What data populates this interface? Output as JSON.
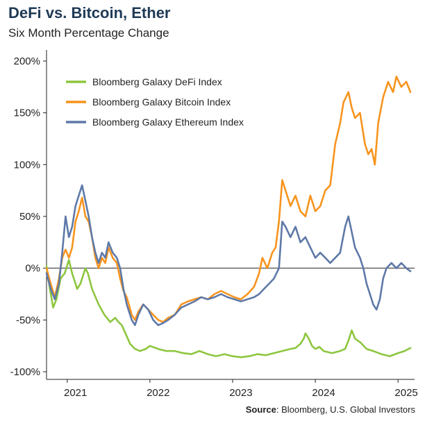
{
  "title": "DeFi vs. Bitcoin, Ether",
  "subtitle": "Six Month Percentage Change",
  "source": {
    "label": "Source",
    "text": ": Bloomberg, U.S. Global Investors"
  },
  "chart_data": {
    "type": "line",
    "x_unit": "year",
    "x_ticks": [
      "2021",
      "2022",
      "2023",
      "2024",
      "2025"
    ],
    "y_ticks": [
      "200%",
      "150%",
      "100%",
      "50%",
      "0%",
      "-50%",
      "-100%"
    ],
    "ylim": [
      -100,
      200
    ],
    "xlim": [
      2020.75,
      2025.2
    ],
    "zero_line": true,
    "legend_position": "top-left",
    "series": [
      {
        "name": "Bloomberg Galaxy DeFi Index",
        "color": "#8dc63f",
        "points": [
          [
            2020.75,
            2
          ],
          [
            2020.79,
            -20
          ],
          [
            2020.83,
            -38
          ],
          [
            2020.87,
            -30
          ],
          [
            2020.92,
            -10
          ],
          [
            2020.97,
            -5
          ],
          [
            2021.02,
            8
          ],
          [
            2021.06,
            -5
          ],
          [
            2021.12,
            -20
          ],
          [
            2021.16,
            -15
          ],
          [
            2021.22,
            0
          ],
          [
            2021.25,
            -5
          ],
          [
            2021.3,
            -20
          ],
          [
            2021.38,
            -35
          ],
          [
            2021.45,
            -45
          ],
          [
            2021.52,
            -52
          ],
          [
            2021.58,
            -48
          ],
          [
            2021.62,
            -52
          ],
          [
            2021.66,
            -55
          ],
          [
            2021.7,
            -62
          ],
          [
            2021.76,
            -73
          ],
          [
            2021.82,
            -78
          ],
          [
            2021.88,
            -80
          ],
          [
            2021.95,
            -78
          ],
          [
            2022.0,
            -75
          ],
          [
            2022.1,
            -78
          ],
          [
            2022.2,
            -80
          ],
          [
            2022.3,
            -80
          ],
          [
            2022.4,
            -82
          ],
          [
            2022.5,
            -83
          ],
          [
            2022.6,
            -80
          ],
          [
            2022.7,
            -83
          ],
          [
            2022.8,
            -85
          ],
          [
            2022.9,
            -83
          ],
          [
            2023.0,
            -85
          ],
          [
            2023.1,
            -86
          ],
          [
            2023.2,
            -85
          ],
          [
            2023.3,
            -83
          ],
          [
            2023.4,
            -84
          ],
          [
            2023.5,
            -82
          ],
          [
            2023.6,
            -80
          ],
          [
            2023.7,
            -78
          ],
          [
            2023.76,
            -77
          ],
          [
            2023.82,
            -73
          ],
          [
            2023.86,
            -68
          ],
          [
            2023.88,
            -63
          ],
          [
            2023.92,
            -68
          ],
          [
            2023.96,
            -75
          ],
          [
            2024.0,
            -78
          ],
          [
            2024.05,
            -76
          ],
          [
            2024.1,
            -80
          ],
          [
            2024.2,
            -82
          ],
          [
            2024.3,
            -80
          ],
          [
            2024.36,
            -78
          ],
          [
            2024.4,
            -70
          ],
          [
            2024.44,
            -60
          ],
          [
            2024.48,
            -68
          ],
          [
            2024.55,
            -72
          ],
          [
            2024.62,
            -78
          ],
          [
            2024.7,
            -80
          ],
          [
            2024.8,
            -83
          ],
          [
            2024.9,
            -85
          ],
          [
            2025.0,
            -82
          ],
          [
            2025.08,
            -80
          ],
          [
            2025.15,
            -77
          ]
        ]
      },
      {
        "name": "Bloomberg Galaxy Bitcoin Index",
        "color": "#f7941d",
        "points": [
          [
            2020.75,
            0
          ],
          [
            2020.8,
            -15
          ],
          [
            2020.85,
            -28
          ],
          [
            2020.9,
            -10
          ],
          [
            2020.94,
            10
          ],
          [
            2020.98,
            18
          ],
          [
            2021.02,
            10
          ],
          [
            2021.06,
            20
          ],
          [
            2021.1,
            45
          ],
          [
            2021.14,
            55
          ],
          [
            2021.18,
            68
          ],
          [
            2021.22,
            50
          ],
          [
            2021.26,
            45
          ],
          [
            2021.3,
            30
          ],
          [
            2021.34,
            10
          ],
          [
            2021.38,
            0
          ],
          [
            2021.42,
            10
          ],
          [
            2021.46,
            5
          ],
          [
            2021.5,
            20
          ],
          [
            2021.55,
            10
          ],
          [
            2021.6,
            5
          ],
          [
            2021.64,
            -10
          ],
          [
            2021.68,
            -22
          ],
          [
            2021.72,
            -28
          ],
          [
            2021.78,
            -45
          ],
          [
            2021.82,
            -50
          ],
          [
            2021.86,
            -42
          ],
          [
            2021.92,
            -35
          ],
          [
            2021.98,
            -40
          ],
          [
            2022.04,
            -45
          ],
          [
            2022.1,
            -50
          ],
          [
            2022.16,
            -52
          ],
          [
            2022.22,
            -48
          ],
          [
            2022.3,
            -45
          ],
          [
            2022.38,
            -35
          ],
          [
            2022.46,
            -32
          ],
          [
            2022.54,
            -30
          ],
          [
            2022.62,
            -28
          ],
          [
            2022.7,
            -30
          ],
          [
            2022.78,
            -25
          ],
          [
            2022.86,
            -22
          ],
          [
            2022.94,
            -25
          ],
          [
            2023.02,
            -28
          ],
          [
            2023.1,
            -30
          ],
          [
            2023.18,
            -25
          ],
          [
            2023.26,
            -18
          ],
          [
            2023.32,
            -5
          ],
          [
            2023.36,
            10
          ],
          [
            2023.42,
            0
          ],
          [
            2023.48,
            15
          ],
          [
            2023.52,
            20
          ],
          [
            2023.56,
            45
          ],
          [
            2023.6,
            85
          ],
          [
            2023.64,
            75
          ],
          [
            2023.7,
            60
          ],
          [
            2023.76,
            70
          ],
          [
            2023.82,
            55
          ],
          [
            2023.88,
            50
          ],
          [
            2023.94,
            70
          ],
          [
            2024.0,
            55
          ],
          [
            2024.06,
            60
          ],
          [
            2024.12,
            75
          ],
          [
            2024.18,
            80
          ],
          [
            2024.24,
            120
          ],
          [
            2024.3,
            140
          ],
          [
            2024.34,
            160
          ],
          [
            2024.4,
            170
          ],
          [
            2024.44,
            155
          ],
          [
            2024.48,
            145
          ],
          [
            2024.54,
            150
          ],
          [
            2024.6,
            120
          ],
          [
            2024.64,
            110
          ],
          [
            2024.68,
            115
          ],
          [
            2024.72,
            100
          ],
          [
            2024.76,
            140
          ],
          [
            2024.82,
            165
          ],
          [
            2024.88,
            180
          ],
          [
            2024.94,
            170
          ],
          [
            2024.98,
            185
          ],
          [
            2025.04,
            175
          ],
          [
            2025.1,
            180
          ],
          [
            2025.15,
            170
          ]
        ]
      },
      {
        "name": "Bloomberg Galaxy Ethereum Index",
        "color": "#5e79a8",
        "points": [
          [
            2020.75,
            -5
          ],
          [
            2020.8,
            -20
          ],
          [
            2020.85,
            -30
          ],
          [
            2020.9,
            -15
          ],
          [
            2020.94,
            15
          ],
          [
            2020.98,
            50
          ],
          [
            2021.02,
            30
          ],
          [
            2021.06,
            40
          ],
          [
            2021.1,
            60
          ],
          [
            2021.14,
            70
          ],
          [
            2021.18,
            80
          ],
          [
            2021.22,
            65
          ],
          [
            2021.26,
            50
          ],
          [
            2021.3,
            30
          ],
          [
            2021.34,
            15
          ],
          [
            2021.38,
            5
          ],
          [
            2021.42,
            15
          ],
          [
            2021.46,
            10
          ],
          [
            2021.5,
            25
          ],
          [
            2021.55,
            15
          ],
          [
            2021.6,
            10
          ],
          [
            2021.64,
            0
          ],
          [
            2021.68,
            -20
          ],
          [
            2021.72,
            -35
          ],
          [
            2021.78,
            -50
          ],
          [
            2021.82,
            -55
          ],
          [
            2021.86,
            -45
          ],
          [
            2021.92,
            -35
          ],
          [
            2021.98,
            -40
          ],
          [
            2022.04,
            -50
          ],
          [
            2022.1,
            -55
          ],
          [
            2022.16,
            -53
          ],
          [
            2022.22,
            -50
          ],
          [
            2022.3,
            -45
          ],
          [
            2022.38,
            -38
          ],
          [
            2022.46,
            -35
          ],
          [
            2022.54,
            -32
          ],
          [
            2022.62,
            -28
          ],
          [
            2022.7,
            -30
          ],
          [
            2022.78,
            -28
          ],
          [
            2022.86,
            -25
          ],
          [
            2022.94,
            -28
          ],
          [
            2023.02,
            -30
          ],
          [
            2023.1,
            -32
          ],
          [
            2023.18,
            -30
          ],
          [
            2023.26,
            -28
          ],
          [
            2023.32,
            -25
          ],
          [
            2023.38,
            -20
          ],
          [
            2023.44,
            -15
          ],
          [
            2023.5,
            -10
          ],
          [
            2023.56,
            0
          ],
          [
            2023.6,
            45
          ],
          [
            2023.64,
            40
          ],
          [
            2023.7,
            30
          ],
          [
            2023.76,
            40
          ],
          [
            2023.82,
            25
          ],
          [
            2023.88,
            30
          ],
          [
            2023.94,
            20
          ],
          [
            2024.0,
            10
          ],
          [
            2024.06,
            15
          ],
          [
            2024.12,
            10
          ],
          [
            2024.18,
            5
          ],
          [
            2024.24,
            10
          ],
          [
            2024.3,
            15
          ],
          [
            2024.36,
            40
          ],
          [
            2024.4,
            50
          ],
          [
            2024.44,
            35
          ],
          [
            2024.48,
            20
          ],
          [
            2024.54,
            10
          ],
          [
            2024.58,
            0
          ],
          [
            2024.62,
            -15
          ],
          [
            2024.66,
            -25
          ],
          [
            2024.7,
            -35
          ],
          [
            2024.74,
            -40
          ],
          [
            2024.78,
            -30
          ],
          [
            2024.82,
            -10
          ],
          [
            2024.86,
            0
          ],
          [
            2024.92,
            5
          ],
          [
            2024.98,
            0
          ],
          [
            2025.04,
            5
          ],
          [
            2025.1,
            0
          ],
          [
            2025.15,
            -3
          ]
        ]
      }
    ]
  }
}
